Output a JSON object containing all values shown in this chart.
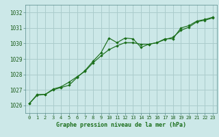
{
  "title": "Graphe pression niveau de la mer (hPa)",
  "background_color": "#cce8e8",
  "grid_color": "#aacccc",
  "line_color": "#1a6e1a",
  "marker_color": "#1a6e1a",
  "xlim": [
    -0.5,
    23.5
  ],
  "ylim": [
    1025.5,
    1032.5
  ],
  "yticks": [
    1026,
    1027,
    1028,
    1029,
    1030,
    1031,
    1032
  ],
  "xticks": [
    0,
    1,
    2,
    3,
    4,
    5,
    6,
    7,
    8,
    9,
    10,
    11,
    12,
    13,
    14,
    15,
    16,
    17,
    18,
    19,
    20,
    21,
    22,
    23
  ],
  "series1": [
    [
      0,
      1026.1
    ],
    [
      1,
      1026.7
    ],
    [
      2,
      1026.7
    ],
    [
      3,
      1027.0
    ],
    [
      4,
      1027.15
    ],
    [
      5,
      1027.3
    ],
    [
      6,
      1027.8
    ],
    [
      7,
      1028.25
    ],
    [
      8,
      1028.85
    ],
    [
      9,
      1029.4
    ],
    [
      10,
      1030.35
    ],
    [
      11,
      1030.05
    ],
    [
      12,
      1030.35
    ],
    [
      13,
      1030.3
    ],
    [
      14,
      1029.75
    ],
    [
      15,
      1029.95
    ],
    [
      16,
      1030.05
    ],
    [
      17,
      1030.3
    ],
    [
      18,
      1030.3
    ],
    [
      19,
      1031.0
    ],
    [
      20,
      1031.15
    ],
    [
      21,
      1031.45
    ],
    [
      22,
      1031.55
    ],
    [
      23,
      1031.7
    ]
  ],
  "series2": [
    [
      0,
      1026.1
    ],
    [
      1,
      1026.65
    ],
    [
      2,
      1026.7
    ],
    [
      3,
      1027.05
    ],
    [
      4,
      1027.2
    ],
    [
      5,
      1027.5
    ],
    [
      6,
      1027.85
    ],
    [
      7,
      1028.2
    ],
    [
      8,
      1028.75
    ],
    [
      9,
      1029.2
    ],
    [
      10,
      1029.6
    ],
    [
      11,
      1029.85
    ],
    [
      12,
      1030.05
    ],
    [
      13,
      1030.05
    ],
    [
      14,
      1029.95
    ],
    [
      15,
      1029.95
    ],
    [
      16,
      1030.05
    ],
    [
      17,
      1030.25
    ],
    [
      18,
      1030.4
    ],
    [
      19,
      1030.85
    ],
    [
      20,
      1031.05
    ],
    [
      21,
      1031.4
    ],
    [
      22,
      1031.5
    ],
    [
      23,
      1031.65
    ]
  ],
  "xlabel_fontsize": 6.0,
  "ytick_fontsize": 5.5,
  "xtick_fontsize": 5.0
}
